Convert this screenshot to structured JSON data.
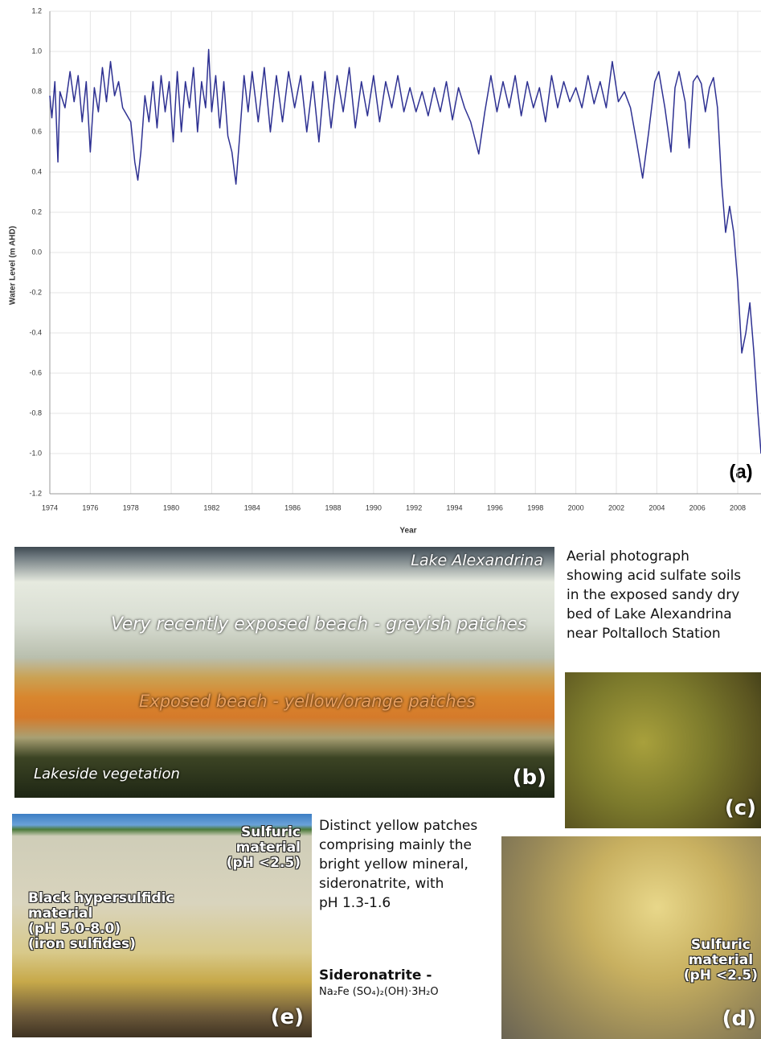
{
  "chart_data": {
    "type": "line",
    "ylabel": "Water Level (m AHD)",
    "xlabel": "Year",
    "annotation": "(a)",
    "color": "#2e3192",
    "grid": true,
    "xlim": [
      1974,
      2009.15
    ],
    "ylim": [
      -1.2,
      1.2
    ],
    "xticks": [
      1974,
      1976,
      1978,
      1980,
      1982,
      1984,
      1986,
      1988,
      1990,
      1992,
      1994,
      1996,
      1998,
      2000,
      2002,
      2004,
      2006,
      2008
    ],
    "yticks": [
      1.2,
      {
        "value": 1,
        "label": "1.0"
      },
      0.8,
      0.6,
      0.4,
      0.2,
      {
        "value": 0,
        "label": "0.0"
      },
      -0.2,
      -0.4,
      -0.6,
      -0.8,
      {
        "value": -1,
        "label": "-1.0"
      },
      -1.2
    ],
    "x": [
      1974.0,
      1974.1,
      1974.25,
      1974.4,
      1974.5,
      1974.75,
      1975.0,
      1975.2,
      1975.4,
      1975.6,
      1975.8,
      1976.0,
      1976.2,
      1976.4,
      1976.6,
      1976.8,
      1977.0,
      1977.2,
      1977.4,
      1977.6,
      1978.0,
      1978.2,
      1978.35,
      1978.5,
      1978.7,
      1978.9,
      1979.1,
      1979.3,
      1979.5,
      1979.7,
      1979.9,
      1980.1,
      1980.3,
      1980.5,
      1980.7,
      1980.9,
      1981.1,
      1981.3,
      1981.5,
      1981.7,
      1981.85,
      1982.0,
      1982.2,
      1982.4,
      1982.6,
      1982.8,
      1983.0,
      1983.2,
      1983.4,
      1983.6,
      1983.8,
      1984.0,
      1984.3,
      1984.6,
      1984.9,
      1985.2,
      1985.5,
      1985.8,
      1986.1,
      1986.4,
      1986.7,
      1987.0,
      1987.3,
      1987.6,
      1987.9,
      1988.2,
      1988.5,
      1988.8,
      1989.1,
      1989.4,
      1989.7,
      1990.0,
      1990.3,
      1990.6,
      1990.9,
      1991.2,
      1991.5,
      1991.8,
      1992.1,
      1992.4,
      1992.7,
      1993.0,
      1993.3,
      1993.6,
      1993.9,
      1994.2,
      1994.5,
      1994.8,
      1995.2,
      1995.5,
      1995.8,
      1996.1,
      1996.4,
      1996.7,
      1997.0,
      1997.3,
      1997.6,
      1997.9,
      1998.2,
      1998.5,
      1998.8,
      1999.1,
      1999.4,
      1999.7,
      2000.0,
      2000.3,
      2000.6,
      2000.9,
      2001.2,
      2001.5,
      2001.8,
      2002.1,
      2002.4,
      2002.7,
      2003.0,
      2003.3,
      2003.6,
      2003.9,
      2004.1,
      2004.4,
      2004.7,
      2004.9,
      2005.1,
      2005.4,
      2005.6,
      2005.8,
      2006.0,
      2006.2,
      2006.4,
      2006.6,
      2006.8,
      2007.0,
      2007.2,
      2007.4,
      2007.6,
      2007.8,
      2008.0,
      2008.2,
      2008.4,
      2008.6,
      2008.8,
      2009.0,
      2009.15
    ],
    "values": [
      0.78,
      0.67,
      0.85,
      0.45,
      0.8,
      0.72,
      0.9,
      0.75,
      0.88,
      0.65,
      0.85,
      0.5,
      0.82,
      0.7,
      0.92,
      0.75,
      0.95,
      0.78,
      0.85,
      0.72,
      0.65,
      0.45,
      0.36,
      0.5,
      0.78,
      0.65,
      0.85,
      0.62,
      0.88,
      0.7,
      0.85,
      0.55,
      0.9,
      0.6,
      0.85,
      0.72,
      0.92,
      0.6,
      0.85,
      0.72,
      1.01,
      0.7,
      0.88,
      0.62,
      0.85,
      0.58,
      0.5,
      0.34,
      0.6,
      0.88,
      0.7,
      0.9,
      0.65,
      0.92,
      0.6,
      0.88,
      0.65,
      0.9,
      0.72,
      0.88,
      0.6,
      0.85,
      0.55,
      0.9,
      0.62,
      0.88,
      0.7,
      0.92,
      0.62,
      0.85,
      0.68,
      0.88,
      0.65,
      0.85,
      0.72,
      0.88,
      0.7,
      0.82,
      0.7,
      0.8,
      0.68,
      0.82,
      0.7,
      0.85,
      0.66,
      0.82,
      0.72,
      0.65,
      0.49,
      0.7,
      0.88,
      0.7,
      0.85,
      0.72,
      0.88,
      0.68,
      0.85,
      0.72,
      0.82,
      0.65,
      0.88,
      0.72,
      0.85,
      0.75,
      0.82,
      0.72,
      0.88,
      0.74,
      0.85,
      0.72,
      0.95,
      0.75,
      0.8,
      0.72,
      0.55,
      0.37,
      0.6,
      0.85,
      0.9,
      0.72,
      0.5,
      0.82,
      0.9,
      0.75,
      0.52,
      0.85,
      0.88,
      0.84,
      0.7,
      0.82,
      0.87,
      0.72,
      0.35,
      0.1,
      0.23,
      0.1,
      -0.15,
      -0.5,
      -0.4,
      -0.25,
      -0.5,
      -0.8,
      -1.0
    ]
  },
  "panel_b": {
    "top_right": "Lake Alexandrina",
    "upper": "Very recently exposed beach - greyish patches",
    "middle": "Exposed beach - yellow/orange patches",
    "bottom_left": "Lakeside vegetation",
    "tag": "(b)"
  },
  "panel_c": {
    "caption": [
      "Aerial photograph",
      "showing acid sulfate soils",
      "in the exposed sandy dry",
      "bed of Lake Alexandrina",
      "near Poltalloch Station"
    ],
    "tag": "(c)"
  },
  "panel_e": {
    "sulfuric": [
      "Sulfuric",
      "material",
      "(pH <2.5)"
    ],
    "black": [
      "Black hypersulfidic",
      "material",
      "(pH 5.0-8.0)",
      "(iron sulfides)"
    ],
    "tag": "(e)"
  },
  "middle_caption": {
    "lines": [
      "Distinct yellow patches",
      "comprising mainly the",
      "bright yellow mineral,",
      "sideronatrite, with",
      "pH 1.3-1.6"
    ],
    "mineral": "Sideronatrite -",
    "formula": "Na₂Fe (SO₄)₂(OH)·3H₂O"
  },
  "panel_d": {
    "sulfuric": [
      "Sulfuric",
      "material",
      "(pH <2.5)"
    ],
    "tag": "(d)"
  }
}
